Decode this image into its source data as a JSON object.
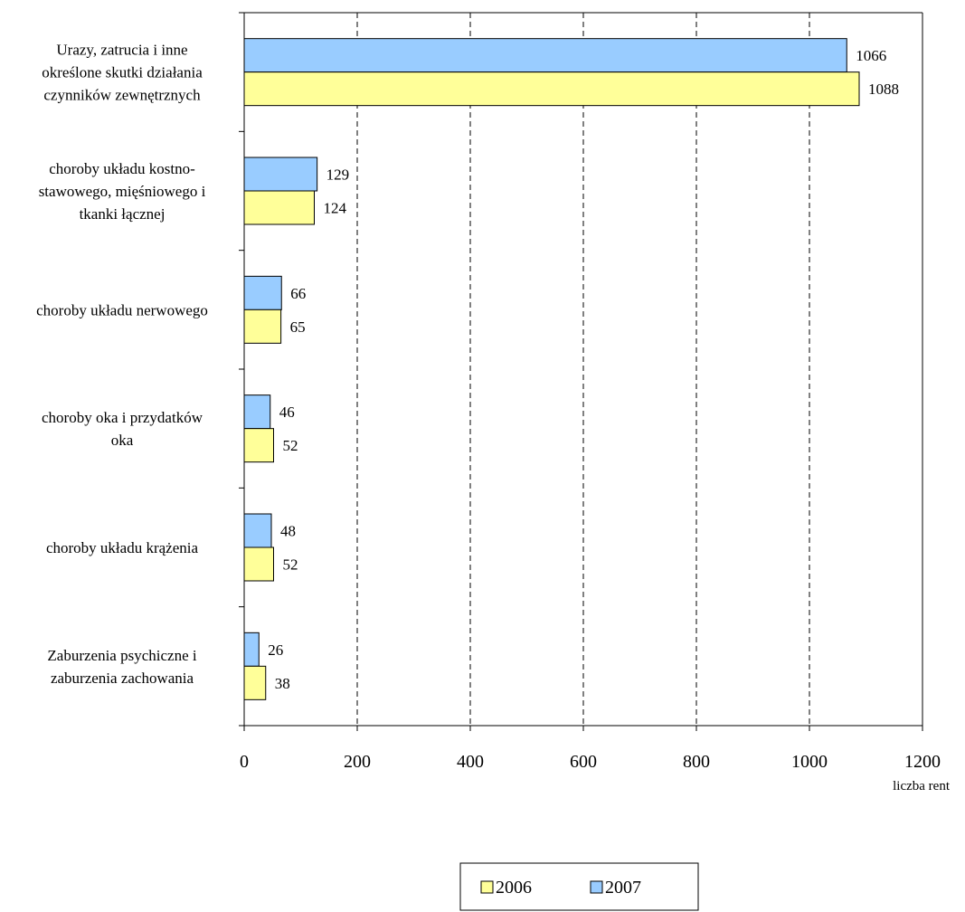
{
  "chart_data": {
    "type": "bar",
    "orientation": "horizontal",
    "categories": [
      [
        "Urazy, zatrucia i inne",
        "określone skutki działania",
        "czynników zewnętrznych"
      ],
      [
        "choroby układu kostno-",
        "stawowego, mięśniowego i",
        "tkanki łącznej"
      ],
      [
        "choroby układu nerwowego"
      ],
      [
        "choroby oka i przydatków",
        "oka"
      ],
      [
        "choroby układu krążenia"
      ],
      [
        "Zaburzenia psychiczne i",
        "zaburzenia zachowania"
      ]
    ],
    "series": [
      {
        "name": "2007",
        "color": "#99ccff",
        "values": [
          1066,
          129,
          66,
          46,
          48,
          26
        ]
      },
      {
        "name": "2006",
        "color": "#ffff99",
        "values": [
          1088,
          124,
          65,
          52,
          52,
          38
        ]
      }
    ],
    "xlim": [
      0,
      1200
    ],
    "xticks": [
      0,
      200,
      400,
      600,
      800,
      1000,
      1200
    ],
    "xlabel": "liczba rent",
    "grid": "vertical dashed",
    "legend": {
      "position": "bottom",
      "order": [
        "2006",
        "2007"
      ]
    }
  }
}
